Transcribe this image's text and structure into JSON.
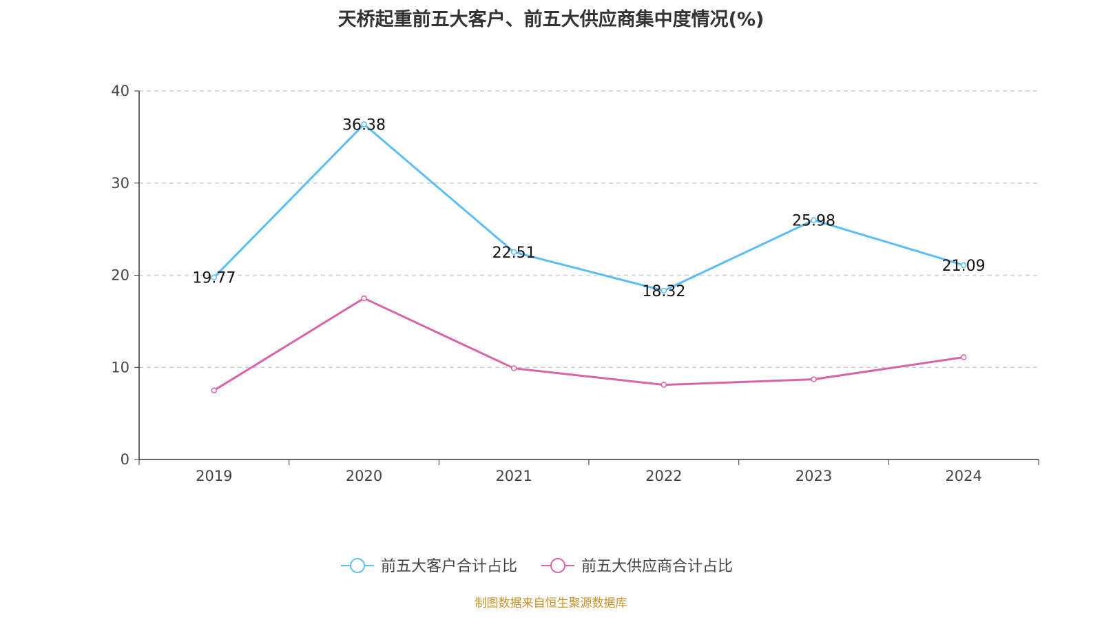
{
  "chart_data": {
    "type": "line",
    "title": "天桥起重前五大客户、前五大供应商集中度情况(%)",
    "categories": [
      "2019",
      "2020",
      "2021",
      "2022",
      "2023",
      "2024"
    ],
    "ylim": [
      0,
      40
    ],
    "yticks": [
      "0",
      "10",
      "20",
      "30",
      "40"
    ],
    "grid": true,
    "legend_position": "bottom",
    "series": [
      {
        "name": "前五大客户合计占比",
        "color": "#5bbdf5",
        "values": [
          19.77,
          36.38,
          22.51,
          18.32,
          25.98,
          21.09
        ],
        "labels": [
          "19.77",
          "36.38",
          "22.51",
          "18.32",
          "25.98",
          "21.09"
        ]
      },
      {
        "name": "前五大供应商合计占比",
        "color": "#d963a8",
        "values": [
          7.5,
          17.5,
          9.9,
          8.1,
          8.7,
          11.1
        ]
      }
    ]
  },
  "source": "制图数据来自恒生聚源数据库"
}
